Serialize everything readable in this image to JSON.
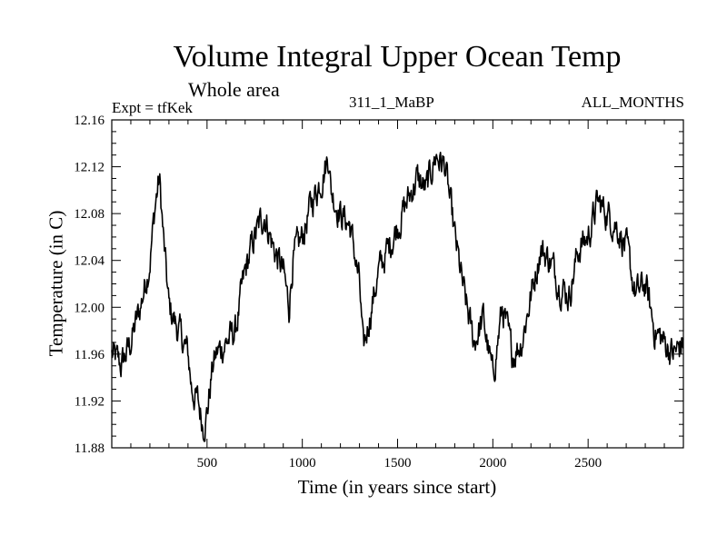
{
  "chart_data": {
    "type": "line",
    "title": "Volume Integral Upper Ocean Temp",
    "subtitle": "Whole area",
    "experiment_label": "Expt = tfKek",
    "run_label": "311_1_MaBP",
    "months_label": "ALL_MONTHS",
    "xlabel": "Time (in years since start)",
    "ylabel": "Temperature (in C)",
    "xlim": [
      0,
      3000
    ],
    "ylim": [
      11.88,
      12.16
    ],
    "xticks_major": [
      500,
      1000,
      1500,
      2000,
      2500
    ],
    "yticks_major": [
      "11.88",
      "11.92",
      "11.96",
      "12.00",
      "12.04",
      "12.08",
      "12.12",
      "12.16"
    ],
    "grid": false,
    "line_color": "#000000",
    "series": [
      {
        "x": [
          0,
          50,
          100,
          150,
          200,
          230,
          250,
          275,
          300,
          350,
          400,
          420,
          450,
          480,
          500,
          530,
          550,
          600,
          650,
          700,
          750,
          800,
          850,
          900,
          930,
          950,
          1000,
          1050,
          1100,
          1140,
          1150,
          1200,
          1250,
          1300,
          1320,
          1350,
          1400,
          1450,
          1500,
          1550,
          1600,
          1650,
          1700,
          1750,
          1800,
          1850,
          1900,
          1950,
          2000,
          2050,
          2100,
          2150,
          2200,
          2250,
          2300,
          2350,
          2400,
          2450,
          2500,
          2550,
          2600,
          2650,
          2700,
          2750,
          2800,
          2850,
          2900,
          2950,
          3000
        ],
        "y": [
          11.96,
          11.95,
          11.97,
          12.0,
          12.04,
          12.09,
          12.11,
          12.05,
          12.0,
          11.98,
          11.96,
          11.93,
          11.92,
          11.9,
          11.91,
          11.95,
          11.96,
          11.97,
          11.98,
          12.03,
          12.06,
          12.08,
          12.05,
          12.03,
          12.0,
          12.04,
          12.06,
          12.09,
          12.11,
          12.13,
          12.1,
          12.08,
          12.07,
          12.02,
          11.96,
          11.99,
          12.03,
          12.05,
          12.07,
          12.09,
          12.11,
          12.1,
          12.13,
          12.12,
          12.06,
          12.01,
          11.97,
          11.99,
          11.94,
          12.0,
          11.96,
          11.97,
          12.01,
          12.05,
          12.04,
          12.02,
          12.01,
          12.05,
          12.06,
          12.09,
          12.08,
          12.07,
          12.05,
          12.01,
          12.02,
          11.98,
          11.97,
          11.96,
          11.97
        ]
      }
    ]
  }
}
